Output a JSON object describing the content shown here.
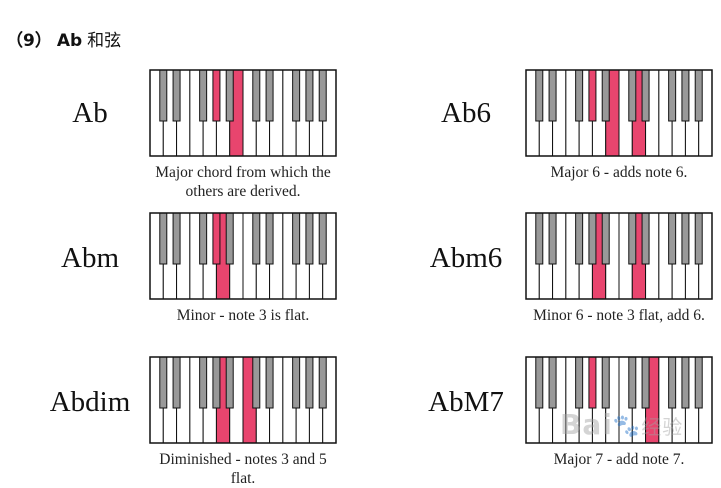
{
  "heading": {
    "number": "（9）",
    "key": "Ab",
    "rest": "和弦"
  },
  "chords": [
    {
      "name": "Ab",
      "caption": [
        "Major chord from which the",
        "others are derived."
      ],
      "keys": [
        [
          "b",
          4
        ],
        [
          "b",
          6
        ],
        [
          "w",
          6
        ]
      ]
    },
    {
      "name": "Ab6",
      "caption": [
        "Major 6 - adds note 6."
      ],
      "keys": [
        [
          "b",
          4
        ],
        [
          "w",
          6
        ],
        [
          "w",
          8
        ]
      ]
    },
    {
      "name": "Abm",
      "caption": [
        "Minor - note 3 is flat."
      ],
      "keys": [
        [
          "b",
          4
        ],
        [
          "w",
          5
        ],
        [
          "b",
          6
        ]
      ]
    },
    {
      "name": "Abm6",
      "caption": [
        "Minor 6 - note 3 flat, add 6."
      ],
      "keys": [
        [
          "w",
          5
        ],
        [
          "w",
          8
        ]
      ]
    },
    {
      "name": "Abdim",
      "caption": [
        "Diminished - notes 3 and 5",
        "flat."
      ],
      "keys": [
        [
          "w",
          5
        ],
        [
          "w",
          7
        ]
      ]
    },
    {
      "name": "AbM7",
      "caption": [
        "Major 7 - add note 7."
      ],
      "keys": [
        [
          "b",
          4
        ],
        [
          "b",
          6
        ],
        [
          "w",
          9
        ]
      ]
    }
  ],
  "colors": {
    "highlight": "#e8456e",
    "black_key": "#999999",
    "key_outline": "#111111"
  },
  "watermark": {
    "brand": "Bai",
    "paw": "🐾",
    "suffix": "经验"
  }
}
